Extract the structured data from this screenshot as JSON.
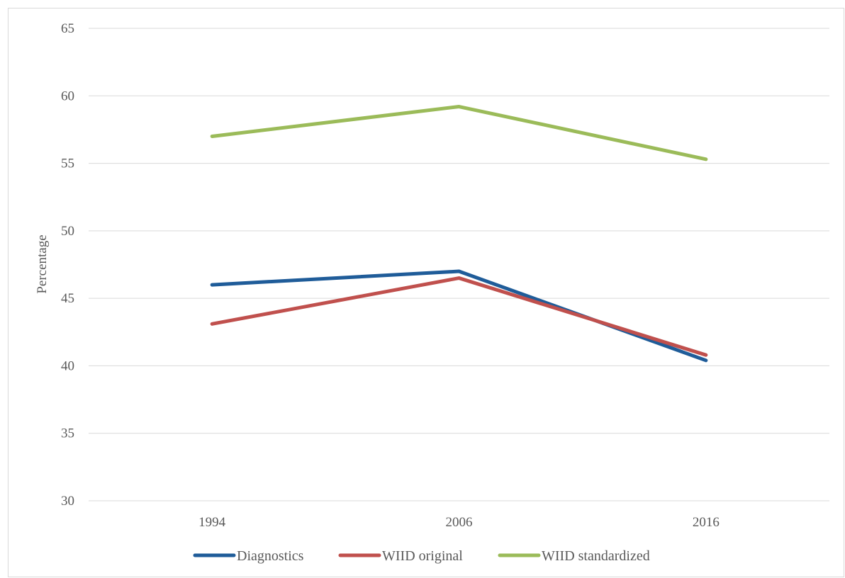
{
  "chart_data": {
    "type": "line",
    "title": "",
    "xlabel": "",
    "ylabel": "Percentage",
    "categories": [
      "1994",
      "2006",
      "2016"
    ],
    "ylim": [
      30,
      65
    ],
    "yticks": [
      30,
      35,
      40,
      45,
      50,
      55,
      60,
      65
    ],
    "grid": true,
    "legend_position": "bottom",
    "series": [
      {
        "name": "Diagnostics",
        "color": "#1f5c99",
        "values": [
          46.0,
          47.0,
          40.4
        ]
      },
      {
        "name": "WIID original",
        "color": "#c0504d",
        "values": [
          43.1,
          46.5,
          40.8
        ]
      },
      {
        "name": "WIID standardized",
        "color": "#9bbb59",
        "values": [
          57.0,
          59.2,
          55.3
        ]
      }
    ]
  }
}
